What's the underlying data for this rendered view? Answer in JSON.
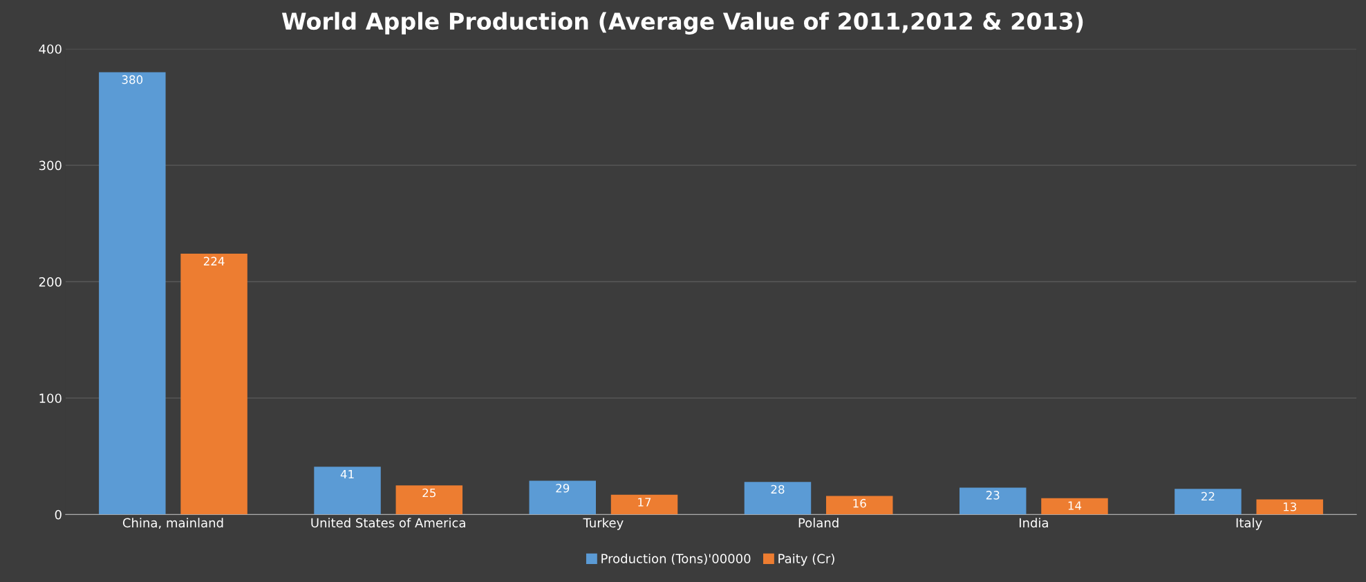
{
  "chart_data": {
    "type": "bar",
    "title": "World Apple Production (Average Value of 2011,2012 & 2013)",
    "categories": [
      "China, mainland",
      "United States of America",
      "Turkey",
      "Poland",
      "India",
      "Italy"
    ],
    "series": [
      {
        "name": "Production (Tons)'00000",
        "color": "#5b9bd5",
        "values": [
          380,
          41,
          29,
          28,
          23,
          22
        ]
      },
      {
        "name": "Paity (Cr)",
        "color": "#ed7d31",
        "values": [
          224,
          25,
          17,
          16,
          14,
          13
        ]
      }
    ],
    "ylim": [
      0,
      400
    ],
    "yticks": [
      0,
      100,
      200,
      300,
      400
    ],
    "grid": "y",
    "legend": "bottom",
    "data_labels": true
  }
}
